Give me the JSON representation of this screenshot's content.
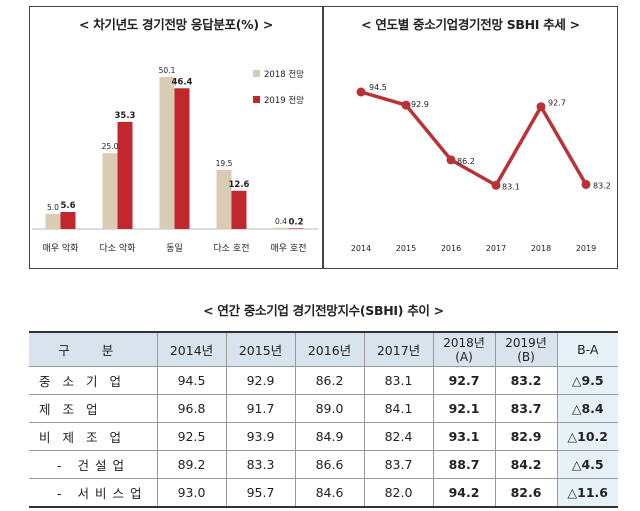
{
  "bar_panel": {
    "title": "< 차기년도 경기전망 응답분포(%) >"
  },
  "line_panel": {
    "title": "< 연도별 중소기업경기전망 SBHI 추세 >"
  },
  "table_title": "< 연간 중소기업 경기전망지수(SBHI) 추이 >",
  "chart_data": [
    {
      "type": "bar",
      "title": "< 차기년도 경기전망 응답분포(%) >",
      "categories": [
        "매우 악화",
        "다소 악화",
        "동일",
        "다소 호전",
        "매우 호전"
      ],
      "series": [
        {
          "name": "2018 전망",
          "values": [
            5.0,
            25.0,
            50.1,
            19.5,
            0.4
          ],
          "labels": [
            "5.0",
            "25.0",
            "50.1",
            "19.5",
            "0.4"
          ],
          "color": "#d8ccb4"
        },
        {
          "name": "2019 전망",
          "values": [
            5.6,
            35.3,
            46.4,
            12.6,
            0.2
          ],
          "labels": [
            "5.6",
            "35.3",
            "46.4",
            "12.6",
            "0.2"
          ],
          "color": "#c0282d"
        }
      ],
      "ylim": [
        0,
        60
      ],
      "grid": false,
      "legend": "top-right"
    },
    {
      "type": "line",
      "title": "< 연도별 중소기업경기전망 SBHI 추세 >",
      "x": [
        "2014",
        "2015",
        "2016",
        "2017",
        "2018",
        "2019"
      ],
      "series": [
        {
          "values": [
            94.5,
            92.9,
            86.2,
            83.1,
            92.7,
            83.2
          ],
          "labels": [
            "94.5",
            "92.9",
            "86.2",
            "83.1",
            "92.7",
            "83.2"
          ],
          "color": "#b93235"
        }
      ],
      "ylim": [
        78,
        100
      ],
      "grid": false
    },
    {
      "type": "table",
      "title": "< 연간 중소기업 경기전망지수(SBHI) 추이 >",
      "header": [
        "구 분",
        "2014년",
        "2015년",
        "2016년",
        "2017년",
        "2018년 (A)",
        "2019년 (B)",
        "B-A"
      ],
      "header_a": {
        "y2018": "2018년",
        "y2018_sub": "(A)",
        "y2019": "2019년",
        "y2019_sub": "(B)"
      },
      "rows": [
        {
          "label": "중소기업",
          "cells": [
            "94.5",
            "92.9",
            "86.2",
            "83.1",
            "92.7",
            "83.2",
            "△9.5"
          ]
        },
        {
          "label": "제조업",
          "cells": [
            "96.8",
            "91.7",
            "89.0",
            "84.1",
            "92.1",
            "83.7",
            "△8.4"
          ]
        },
        {
          "label": "비제조업",
          "cells": [
            "92.5",
            "93.9",
            "84.9",
            "82.4",
            "93.1",
            "82.9",
            "△10.2"
          ]
        },
        {
          "label": "- 건설업",
          "cells": [
            "89.2",
            "83.3",
            "86.6",
            "83.7",
            "88.7",
            "84.2",
            "△4.5"
          ]
        },
        {
          "label": "- 서비스업",
          "cells": [
            "93.0",
            "95.7",
            "84.6",
            "82.0",
            "94.2",
            "82.6",
            "△11.6"
          ]
        }
      ]
    }
  ]
}
